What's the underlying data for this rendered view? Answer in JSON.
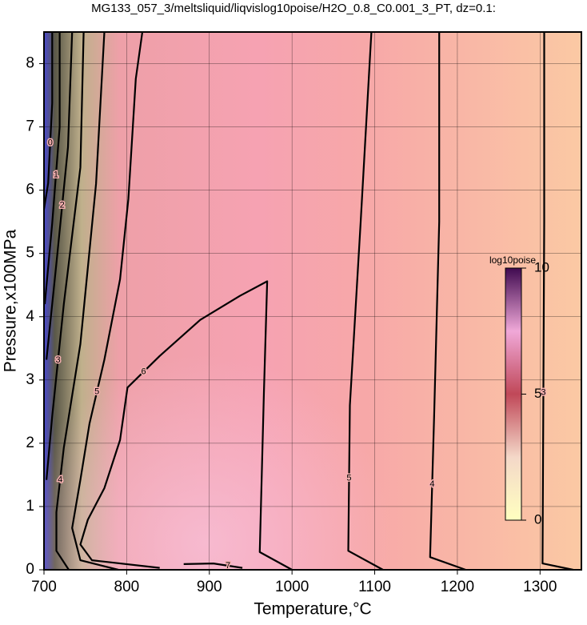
{
  "chart_data": {
    "type": "contour",
    "title": "MG133_057_3/meltsliquid/liqvislog10poise/H2O_0.8_C0.001_3_PT, dz=0.1:",
    "x_label": "Temperature,°C",
    "y_label": "Pressure,x100MPa",
    "xlim": [
      700,
      1350
    ],
    "ylim": [
      0,
      8.5
    ],
    "xticks": [
      700,
      800,
      900,
      1000,
      1100,
      1200,
      1300
    ],
    "yticks": [
      0,
      1,
      2,
      3,
      4,
      5,
      6,
      7,
      8
    ],
    "grid": true,
    "line_color": "#000000",
    "contours": [
      {
        "level": 3,
        "x": [
          1305,
          1305,
          1303,
          1340
        ],
        "y": [
          8.5,
          5.5,
          0.1,
          0
        ]
      },
      {
        "level": 4,
        "x": [
          1178,
          1178,
          1172,
          1167,
          1210
        ],
        "y": [
          8.5,
          5.5,
          2.5,
          0.2,
          0
        ]
      },
      {
        "level": 5,
        "x": [
          1096,
          1083,
          1070,
          1068,
          1110
        ],
        "y": [
          8.5,
          5.5,
          2.6,
          0.3,
          0
        ]
      },
      {
        "level": 6,
        "x": [
          840,
          758,
          744,
          753,
          773,
          792,
          801,
          840,
          889,
          937,
          970,
          966,
          961,
          1000
        ],
        "y": [
          0.03,
          0.15,
          0.4,
          0.79,
          1.29,
          2.05,
          2.88,
          3.38,
          3.95,
          4.33,
          4.56,
          2.8,
          0.28,
          0
        ]
      },
      {
        "level": 5,
        "x": [
          819,
          811,
          802,
          792,
          773,
          755,
          744,
          734,
          744,
          790
        ],
        "y": [
          8.5,
          7.76,
          5.86,
          4.59,
          3.32,
          2.31,
          1.42,
          0.66,
          0.15,
          0
        ]
      },
      {
        "level": 4,
        "x": [
          773,
          763,
          744,
          724,
          715,
          715,
          730
        ],
        "y": [
          8.5,
          6.1,
          3.57,
          1.93,
          0.91,
          0.3,
          0
        ]
      },
      {
        "level": 3,
        "x": [
          748,
          744,
          724,
          710,
          703
        ],
        "y": [
          8.5,
          6.36,
          4.2,
          2.43,
          1.42
        ]
      },
      {
        "level": 2,
        "x": [
          734,
          729,
          715,
          703
        ],
        "y": [
          8.5,
          6.68,
          4.84,
          3.32
        ]
      },
      {
        "level": 1,
        "x": [
          719,
          719,
          710,
          701
        ],
        "y": [
          8.5,
          7.0,
          5.48,
          4.2
        ]
      },
      {
        "level": 0,
        "x": [
          710,
          710,
          705,
          700
        ],
        "y": [
          8.5,
          7.38,
          6.11,
          5.7
        ]
      },
      {
        "level": 7,
        "x": [
          869,
          905,
          940
        ],
        "y": [
          0.09,
          0.1,
          0.03
        ]
      }
    ],
    "colorbar": {
      "label": "log10poise",
      "lim": [
        0,
        10
      ],
      "ticks": [
        0,
        5,
        10
      ],
      "colors": [
        "#ffffc0",
        "#f4d8c8",
        "#c04858",
        "#f0a8d8",
        "#400a50"
      ]
    }
  }
}
